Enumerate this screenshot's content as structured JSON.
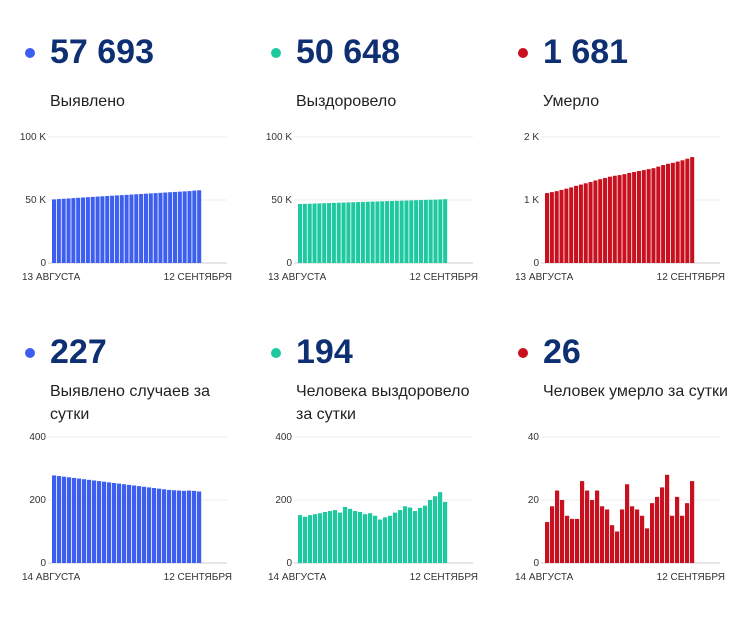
{
  "chart_data": [
    {
      "type": "bar",
      "title": "57 693",
      "subtitle": "Выявлено",
      "color": "#3d5ff0",
      "ylim": [
        0,
        100000
      ],
      "yticks": [
        0,
        50000,
        100000
      ],
      "ytick_labels": [
        "0",
        "50 K",
        "100 K"
      ],
      "x_start_label": "13 АВГУСТА",
      "x_end_label": "12 СЕНТЯБРЯ",
      "values": [
        50500,
        50750,
        51000,
        51250,
        51500,
        51750,
        51990,
        52230,
        52470,
        52710,
        52950,
        53180,
        53410,
        53640,
        53870,
        54100,
        54330,
        54560,
        54790,
        55020,
        55250,
        55480,
        55710,
        55940,
        56170,
        56400,
        56620,
        56840,
        57060,
        57466,
        57693
      ]
    },
    {
      "type": "bar",
      "title": "50 648",
      "subtitle": "Выздоровело",
      "color": "#1ec9a0",
      "ylim": [
        0,
        100000
      ],
      "yticks": [
        0,
        50000,
        100000
      ],
      "ytick_labels": [
        "0",
        "50 K",
        "100 K"
      ],
      "x_start_label": "13 АВГУСТА",
      "x_end_label": "12 СЕНТЯБРЯ",
      "values": [
        46800,
        46930,
        47060,
        47190,
        47320,
        47450,
        47580,
        47710,
        47840,
        47970,
        48100,
        48230,
        48360,
        48490,
        48620,
        48740,
        48860,
        48980,
        49100,
        49220,
        49340,
        49460,
        49580,
        49700,
        49830,
        49960,
        50080,
        50190,
        50290,
        50454,
        50648
      ]
    },
    {
      "type": "bar",
      "title": "1 681",
      "subtitle": "Умерло",
      "color": "#c8101e",
      "ylim": [
        0,
        2000
      ],
      "yticks": [
        0,
        1000,
        2000
      ],
      "ytick_labels": [
        "0",
        "1 K",
        "2 K"
      ],
      "x_start_label": "13 АВГУСТА",
      "x_end_label": "12 СЕНТЯБРЯ",
      "values": [
        1110,
        1125,
        1140,
        1160,
        1180,
        1200,
        1225,
        1245,
        1265,
        1285,
        1310,
        1330,
        1350,
        1370,
        1385,
        1395,
        1410,
        1430,
        1445,
        1460,
        1475,
        1490,
        1505,
        1530,
        1555,
        1575,
        1590,
        1610,
        1630,
        1655,
        1681
      ]
    },
    {
      "type": "bar",
      "title": "227",
      "subtitle": "Выявлено случаев за сутки",
      "color": "#3d5ff0",
      "ylim": [
        0,
        400
      ],
      "yticks": [
        0,
        200,
        400
      ],
      "ytick_labels": [
        "0",
        "200",
        "400"
      ],
      "x_start_label": "14 АВГУСТА",
      "x_end_label": "12 СЕНТЯБРЯ",
      "values": [
        278,
        276,
        274,
        272,
        270,
        268,
        266,
        264,
        262,
        260,
        258,
        256,
        254,
        252,
        250,
        248,
        246,
        244,
        242,
        240,
        238,
        236,
        234,
        232,
        231,
        230,
        229,
        230,
        229,
        227
      ]
    },
    {
      "type": "bar",
      "title": "194",
      "subtitle": "Человека выздоровело за сутки",
      "color": "#1ec9a0",
      "ylim": [
        0,
        400
      ],
      "yticks": [
        0,
        200,
        400
      ],
      "ytick_labels": [
        "0",
        "200",
        "400"
      ],
      "x_start_label": "14 АВГУСТА",
      "x_end_label": "12 СЕНТЯБРЯ",
      "values": [
        152,
        147,
        152,
        155,
        158,
        162,
        165,
        168,
        160,
        178,
        172,
        165,
        162,
        155,
        158,
        150,
        138,
        145,
        150,
        160,
        168,
        180,
        176,
        165,
        175,
        182,
        200,
        212,
        225,
        194
      ]
    },
    {
      "type": "bar",
      "title": "26",
      "subtitle": "Человек умерло за сутки",
      "color": "#c8101e",
      "ylim": [
        0,
        40
      ],
      "yticks": [
        0,
        20,
        40
      ],
      "ytick_labels": [
        "0",
        "20",
        "40"
      ],
      "x_start_label": "14 АВГУСТА",
      "x_end_label": "12 СЕНТЯБРЯ",
      "values": [
        13,
        18,
        23,
        20,
        15,
        14,
        14,
        26,
        23,
        20,
        23,
        18,
        17,
        12,
        10,
        17,
        25,
        18,
        17,
        15,
        11,
        19,
        21,
        24,
        28,
        15,
        21,
        15,
        19,
        26
      ]
    }
  ]
}
